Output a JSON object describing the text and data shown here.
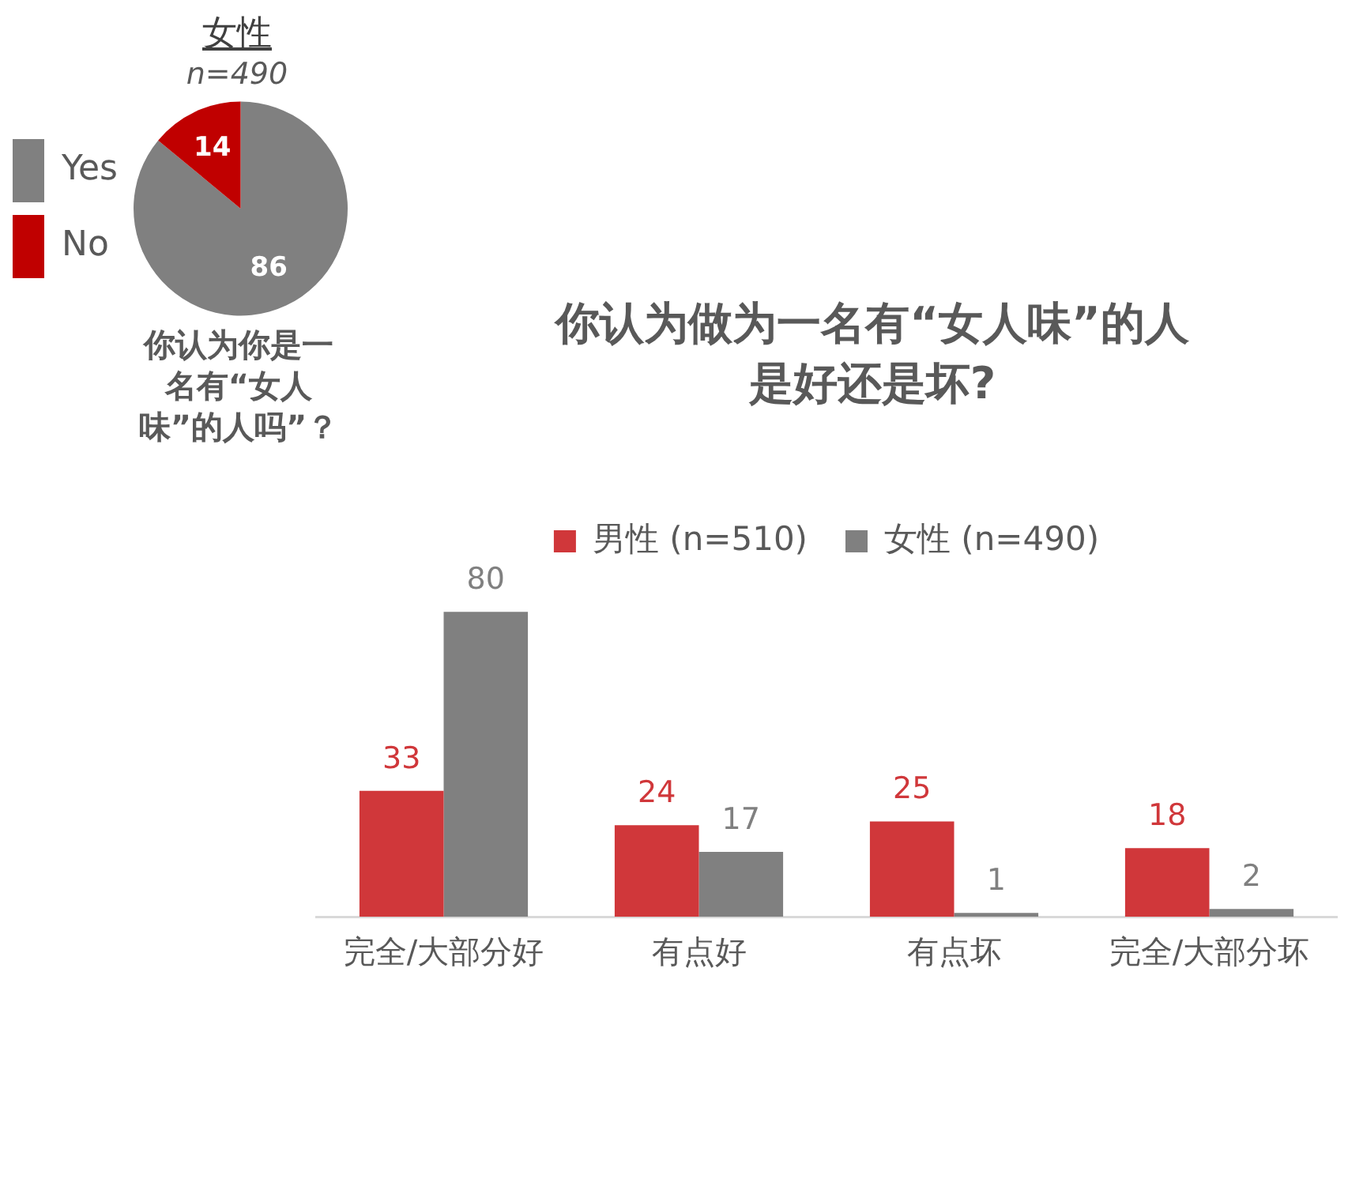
{
  "chart_data": [
    {
      "type": "pie",
      "title": "女性",
      "subtitle": "n=490",
      "categories": [
        "Yes",
        "No"
      ],
      "values": [
        86,
        14
      ],
      "colors": [
        "#808080",
        "#c00000"
      ],
      "legend": "left",
      "data_labels": true,
      "annotations": [
        "你认为你是一名有“女人味”的人吗”？"
      ]
    },
    {
      "type": "bar",
      "title": "你认为做为一名有“女人味”的人是好还是坏?",
      "categories": [
        "完全/大部分好",
        "有点好",
        "有点坏",
        "完全/大部分坏"
      ],
      "series": [
        {
          "name": "男性 (n=510)",
          "color": "#d0373a",
          "values": [
            33,
            24,
            25,
            18
          ]
        },
        {
          "name": "女性 (n=490)",
          "color": "#808080",
          "values": [
            80,
            17,
            1,
            2
          ]
        }
      ],
      "tick_labels": "x",
      "grid": false,
      "legend": "top",
      "data_labels": true
    }
  ]
}
